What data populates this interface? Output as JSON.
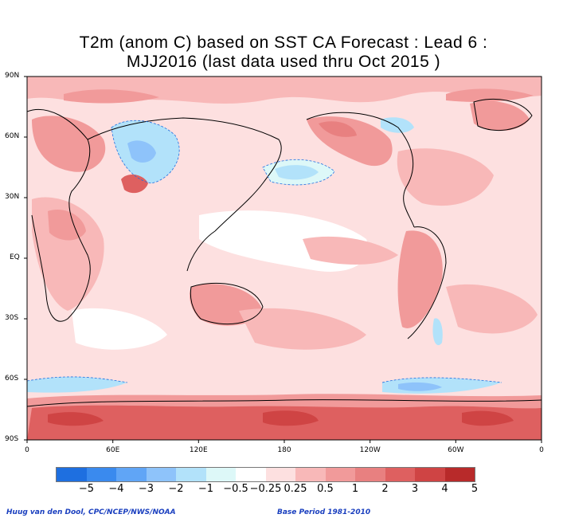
{
  "title_line1": "T2m (anom C) based on SST CA Forecast : Lead 6 :",
  "title_line2": "MJJ2016 (last data used thru Oct 2015 )",
  "lat_labels": [
    "90N",
    "60N",
    "30N",
    "EQ",
    "30S",
    "60S",
    "90S"
  ],
  "lon_labels": [
    "0",
    "60E",
    "120E",
    "180",
    "120W",
    "60W",
    "0"
  ],
  "colorbar": {
    "colors": [
      "#1e6fe0",
      "#3a8aee",
      "#60a5f6",
      "#8ec3fa",
      "#b2e2fa",
      "#ddf8f8",
      "#ffffff",
      "#fde0e0",
      "#f8b8b8",
      "#f19a9a",
      "#e88080",
      "#de6060",
      "#cf4444",
      "#b82a2a"
    ],
    "labels": [
      "−5",
      "−4",
      "−3",
      "−2",
      "−1",
      "−0.5",
      "−0.25",
      "0.25",
      "0.5",
      "1",
      "2",
      "3",
      "4",
      "5"
    ]
  },
  "credit_left": "Huug van den Dool, CPC/NCEP/NWS/NOAA",
  "credit_right": "Base Period 1981-2010"
}
